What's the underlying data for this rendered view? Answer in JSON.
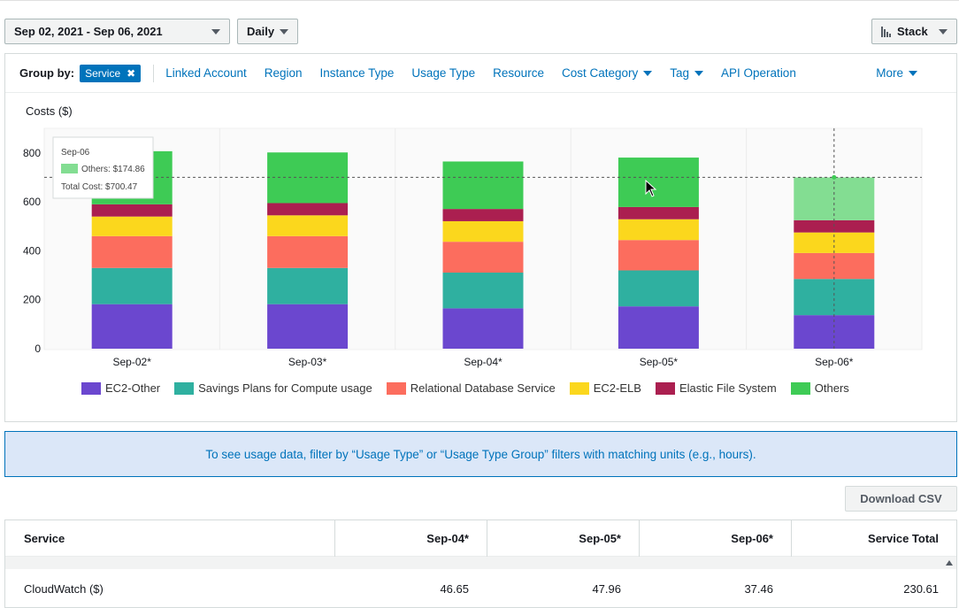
{
  "controls": {
    "date_range": "Sep 02, 2021 - Sep 06, 2021",
    "granularity": "Daily",
    "chart_style": "Stack"
  },
  "group_by": {
    "label": "Group by:",
    "active_token": "Service",
    "options": [
      "Linked Account",
      "Region",
      "Instance Type",
      "Usage Type",
      "Resource",
      "Cost Category",
      "Tag",
      "API Operation"
    ],
    "more": "More"
  },
  "chart_title": "Costs ($)",
  "chart_data": {
    "type": "bar",
    "stacked": true,
    "categories": [
      "Sep-02*",
      "Sep-03*",
      "Sep-04*",
      "Sep-05*",
      "Sep-06*"
    ],
    "series": [
      {
        "name": "EC2-Other",
        "color": "#6b47cf",
        "values": [
          182,
          182,
          165,
          173,
          137
        ]
      },
      {
        "name": "Savings Plans for Compute usage",
        "color": "#2fb0a0",
        "values": [
          148,
          148,
          146,
          147,
          148
        ]
      },
      {
        "name": "Relational Database Service",
        "color": "#fc6d5e",
        "values": [
          130,
          130,
          126,
          124,
          106
        ]
      },
      {
        "name": "EC2-ELB",
        "color": "#fbd71d",
        "values": [
          80,
          85,
          84,
          85,
          84
        ]
      },
      {
        "name": "Elastic File System",
        "color": "#ab1f50",
        "values": [
          50,
          50,
          50,
          50,
          50
        ]
      },
      {
        "name": "Others",
        "color": "#3ecb55",
        "values": [
          217,
          207,
          194,
          202,
          175
        ]
      }
    ],
    "ylim": [
      0,
      900
    ],
    "yticks": [
      0,
      200,
      400,
      600,
      800
    ],
    "reference_line": 700.47,
    "highlight_category": "Sep-06*",
    "legend_position": "bottom",
    "grid": true
  },
  "tooltip": {
    "date": "Sep-06",
    "series_line": "Others: $174.86",
    "total_line": "Total Cost: $700.47",
    "swatch_color": "#83dd92"
  },
  "banner": {
    "text": "To see usage data, filter by “Usage Type” or “Usage Type Group” filters with matching units (e.g., hours)."
  },
  "download_label": "Download CSV",
  "table": {
    "headers": [
      "Service",
      "Sep-04*",
      "Sep-05*",
      "Sep-06*",
      "Service Total"
    ],
    "rows": [
      {
        "service": "CloudWatch ($)",
        "sep04": "46.65",
        "sep05": "47.96",
        "sep06": "37.46",
        "total": "230.61"
      }
    ]
  }
}
